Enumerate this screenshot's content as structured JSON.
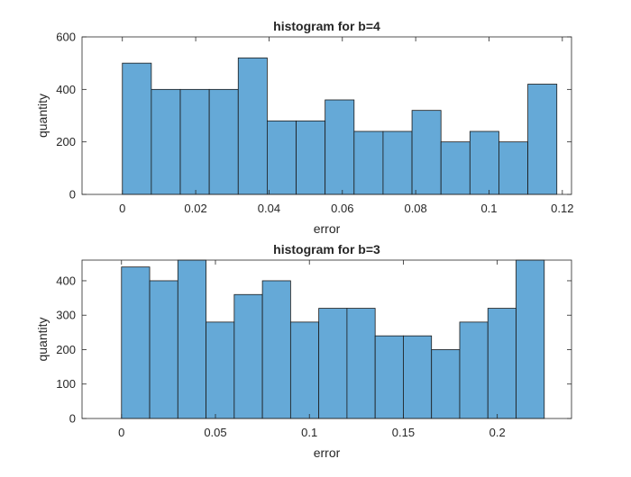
{
  "bar_color": "#65a9d7",
  "edge_color": "#1a1a1a",
  "chart_data": [
    {
      "type": "bar",
      "title": "histogram for b=4",
      "xlabel": "error",
      "ylabel": "quantity",
      "xlim": [
        -0.011,
        0.1225
      ],
      "ylim": [
        0,
        600
      ],
      "xticks": [
        0,
        0.02,
        0.04,
        0.06,
        0.08,
        0.1,
        0.12
      ],
      "xticklabels": [
        "0",
        "0.02",
        "0.04",
        "0.06",
        "0.08",
        "0.1",
        "0.12"
      ],
      "yticks": [
        0,
        200,
        400,
        600
      ],
      "yticklabels": [
        "0",
        "200",
        "400",
        "600"
      ],
      "bin_edges": [
        0,
        0.0079,
        0.0158,
        0.0237,
        0.0316,
        0.0395,
        0.0474,
        0.0553,
        0.0632,
        0.0711,
        0.079,
        0.0869,
        0.0948,
        0.1027,
        0.1106,
        0.1185
      ],
      "values": [
        500,
        400,
        400,
        400,
        520,
        280,
        280,
        360,
        240,
        240,
        320,
        200,
        240,
        200,
        420
      ]
    },
    {
      "type": "bar",
      "title": "histogram for b=3",
      "xlabel": "error",
      "ylabel": "quantity",
      "xlim": [
        -0.021,
        0.2395
      ],
      "ylim": [
        0,
        460
      ],
      "xticks": [
        0,
        0.05,
        0.1,
        0.15,
        0.2
      ],
      "xticklabels": [
        "0",
        "0.05",
        "0.1",
        "0.15",
        "0.2"
      ],
      "yticks": [
        0,
        100,
        200,
        300,
        400
      ],
      "yticklabels": [
        "0",
        "100",
        "200",
        "300",
        "400"
      ],
      "bin_edges": [
        0,
        0.015,
        0.03,
        0.045,
        0.06,
        0.075,
        0.09,
        0.105,
        0.12,
        0.135,
        0.15,
        0.165,
        0.18,
        0.195,
        0.21,
        0.225
      ],
      "values": [
        440,
        400,
        460,
        280,
        360,
        400,
        280,
        320,
        320,
        240,
        240,
        200,
        280,
        320,
        460
      ]
    }
  ]
}
